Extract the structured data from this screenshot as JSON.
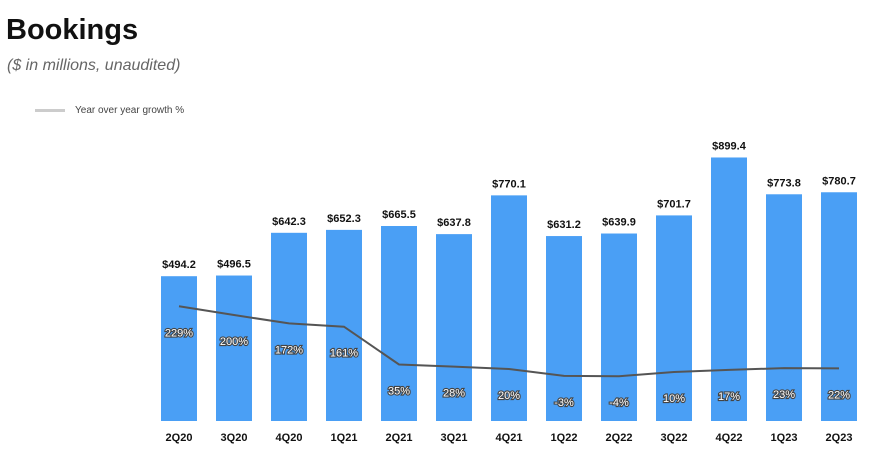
{
  "title": "Bookings",
  "subtitle": "($ in millions, unaudited)",
  "chart_data": {
    "type": "bar",
    "title": "Bookings",
    "subtitle": "($ in millions, unaudited)",
    "categories": [
      "2Q20",
      "3Q20",
      "4Q20",
      "1Q21",
      "2Q21",
      "3Q21",
      "4Q21",
      "1Q22",
      "2Q22",
      "3Q22",
      "4Q22",
      "1Q23",
      "2Q23"
    ],
    "series": [
      {
        "name": "Bookings",
        "type": "bar",
        "color": "#4a9ff5",
        "values": [
          494.2,
          496.5,
          642.3,
          652.3,
          665.5,
          637.8,
          770.1,
          631.2,
          639.9,
          701.7,
          899.4,
          773.8,
          780.7
        ],
        "labels": [
          "$494.2",
          "$496.5",
          "$642.3",
          "$652.3",
          "$665.5",
          "$637.8",
          "$770.1",
          "$631.2",
          "$639.9",
          "$701.7",
          "$899.4",
          "$773.8",
          "$780.7"
        ]
      },
      {
        "name": "Year over year growth %",
        "type": "line",
        "color": "#555555",
        "values": [
          229,
          200,
          172,
          161,
          35,
          28,
          20,
          -3,
          -4,
          10,
          17,
          23,
          22
        ],
        "labels": [
          "229%",
          "200%",
          "172%",
          "161%",
          "35%",
          "28%",
          "20%",
          "-3%",
          "-4%",
          "10%",
          "17%",
          "23%",
          "22%"
        ]
      }
    ],
    "legend": {
      "label": "Year over year growth %",
      "position": "top-left"
    },
    "grid": false
  }
}
